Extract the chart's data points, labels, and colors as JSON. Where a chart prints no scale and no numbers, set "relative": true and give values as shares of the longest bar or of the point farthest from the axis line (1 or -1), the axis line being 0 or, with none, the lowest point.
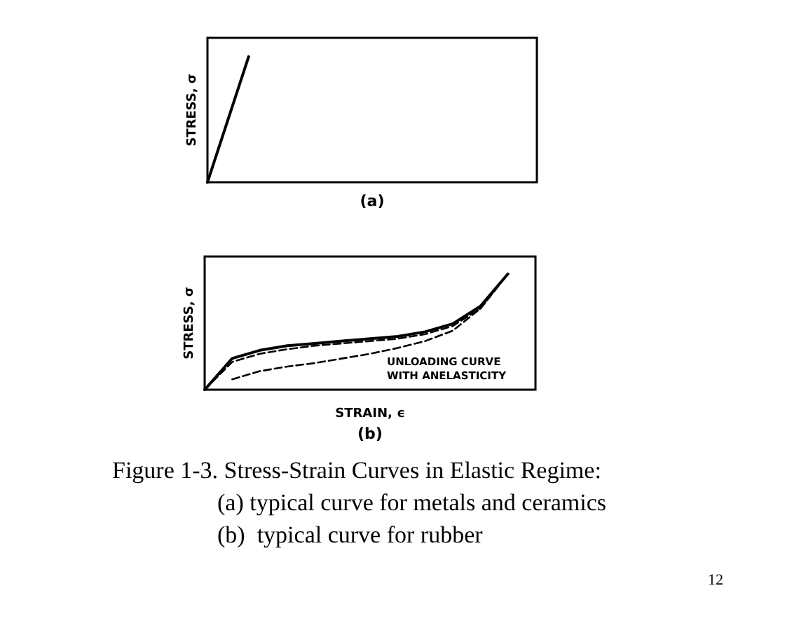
{
  "chart_data": [
    {
      "type": "line",
      "title": "(a)",
      "ylabel": "STRESS, σ",
      "relative": true,
      "grid": false,
      "marker": "none",
      "categories": [
        null,
        null,
        null,
        null,
        null,
        null,
        null,
        null,
        null
      ],
      "series": [
        {
          "color": "#000000",
          "line_style": "solid",
          "values": [
            0,
            1,
            null,
            null,
            null,
            null,
            null,
            null,
            null
          ]
        }
      ]
    },
    {
      "type": "line",
      "title": "(b)",
      "xlabel": "STRAIN, ϵ",
      "ylabel": "STRESS, σ",
      "relative": true,
      "grid": false,
      "marker": "none",
      "categories": [
        null,
        null,
        null,
        null,
        null,
        null,
        null,
        null,
        null,
        null,
        null,
        null,
        null
      ],
      "series": [
        {
          "color": "#000000",
          "line_style": "solid",
          "values": [
            0,
            0.27,
            0.34,
            0.38,
            0.4,
            0.42,
            0.44,
            0.46,
            0.5,
            0.57,
            0.72,
            1,
            null
          ]
        },
        {
          "color": "#000000",
          "line_style": "dashed",
          "values": [
            0,
            0.24,
            0.31,
            0.35,
            0.38,
            0.4,
            0.42,
            0.44,
            0.48,
            0.55,
            0.7,
            1,
            null
          ]
        },
        {
          "color": "#000000",
          "line_style": "dashed",
          "values": [
            null,
            0.09,
            0.16,
            0.2,
            0.23,
            0.27,
            0.31,
            0.36,
            0.42,
            0.51,
            0.7,
            1,
            null
          ]
        }
      ],
      "annotations": [
        "UNLOADING CURVE\nWITH ANELASTICITY",
        "Figure 1-3. Stress-Strain Curves in Elastic Regime:",
        "(a) typical curve for metals and ceramics",
        "(b)  typical curve for rubber",
        "12"
      ]
    }
  ]
}
